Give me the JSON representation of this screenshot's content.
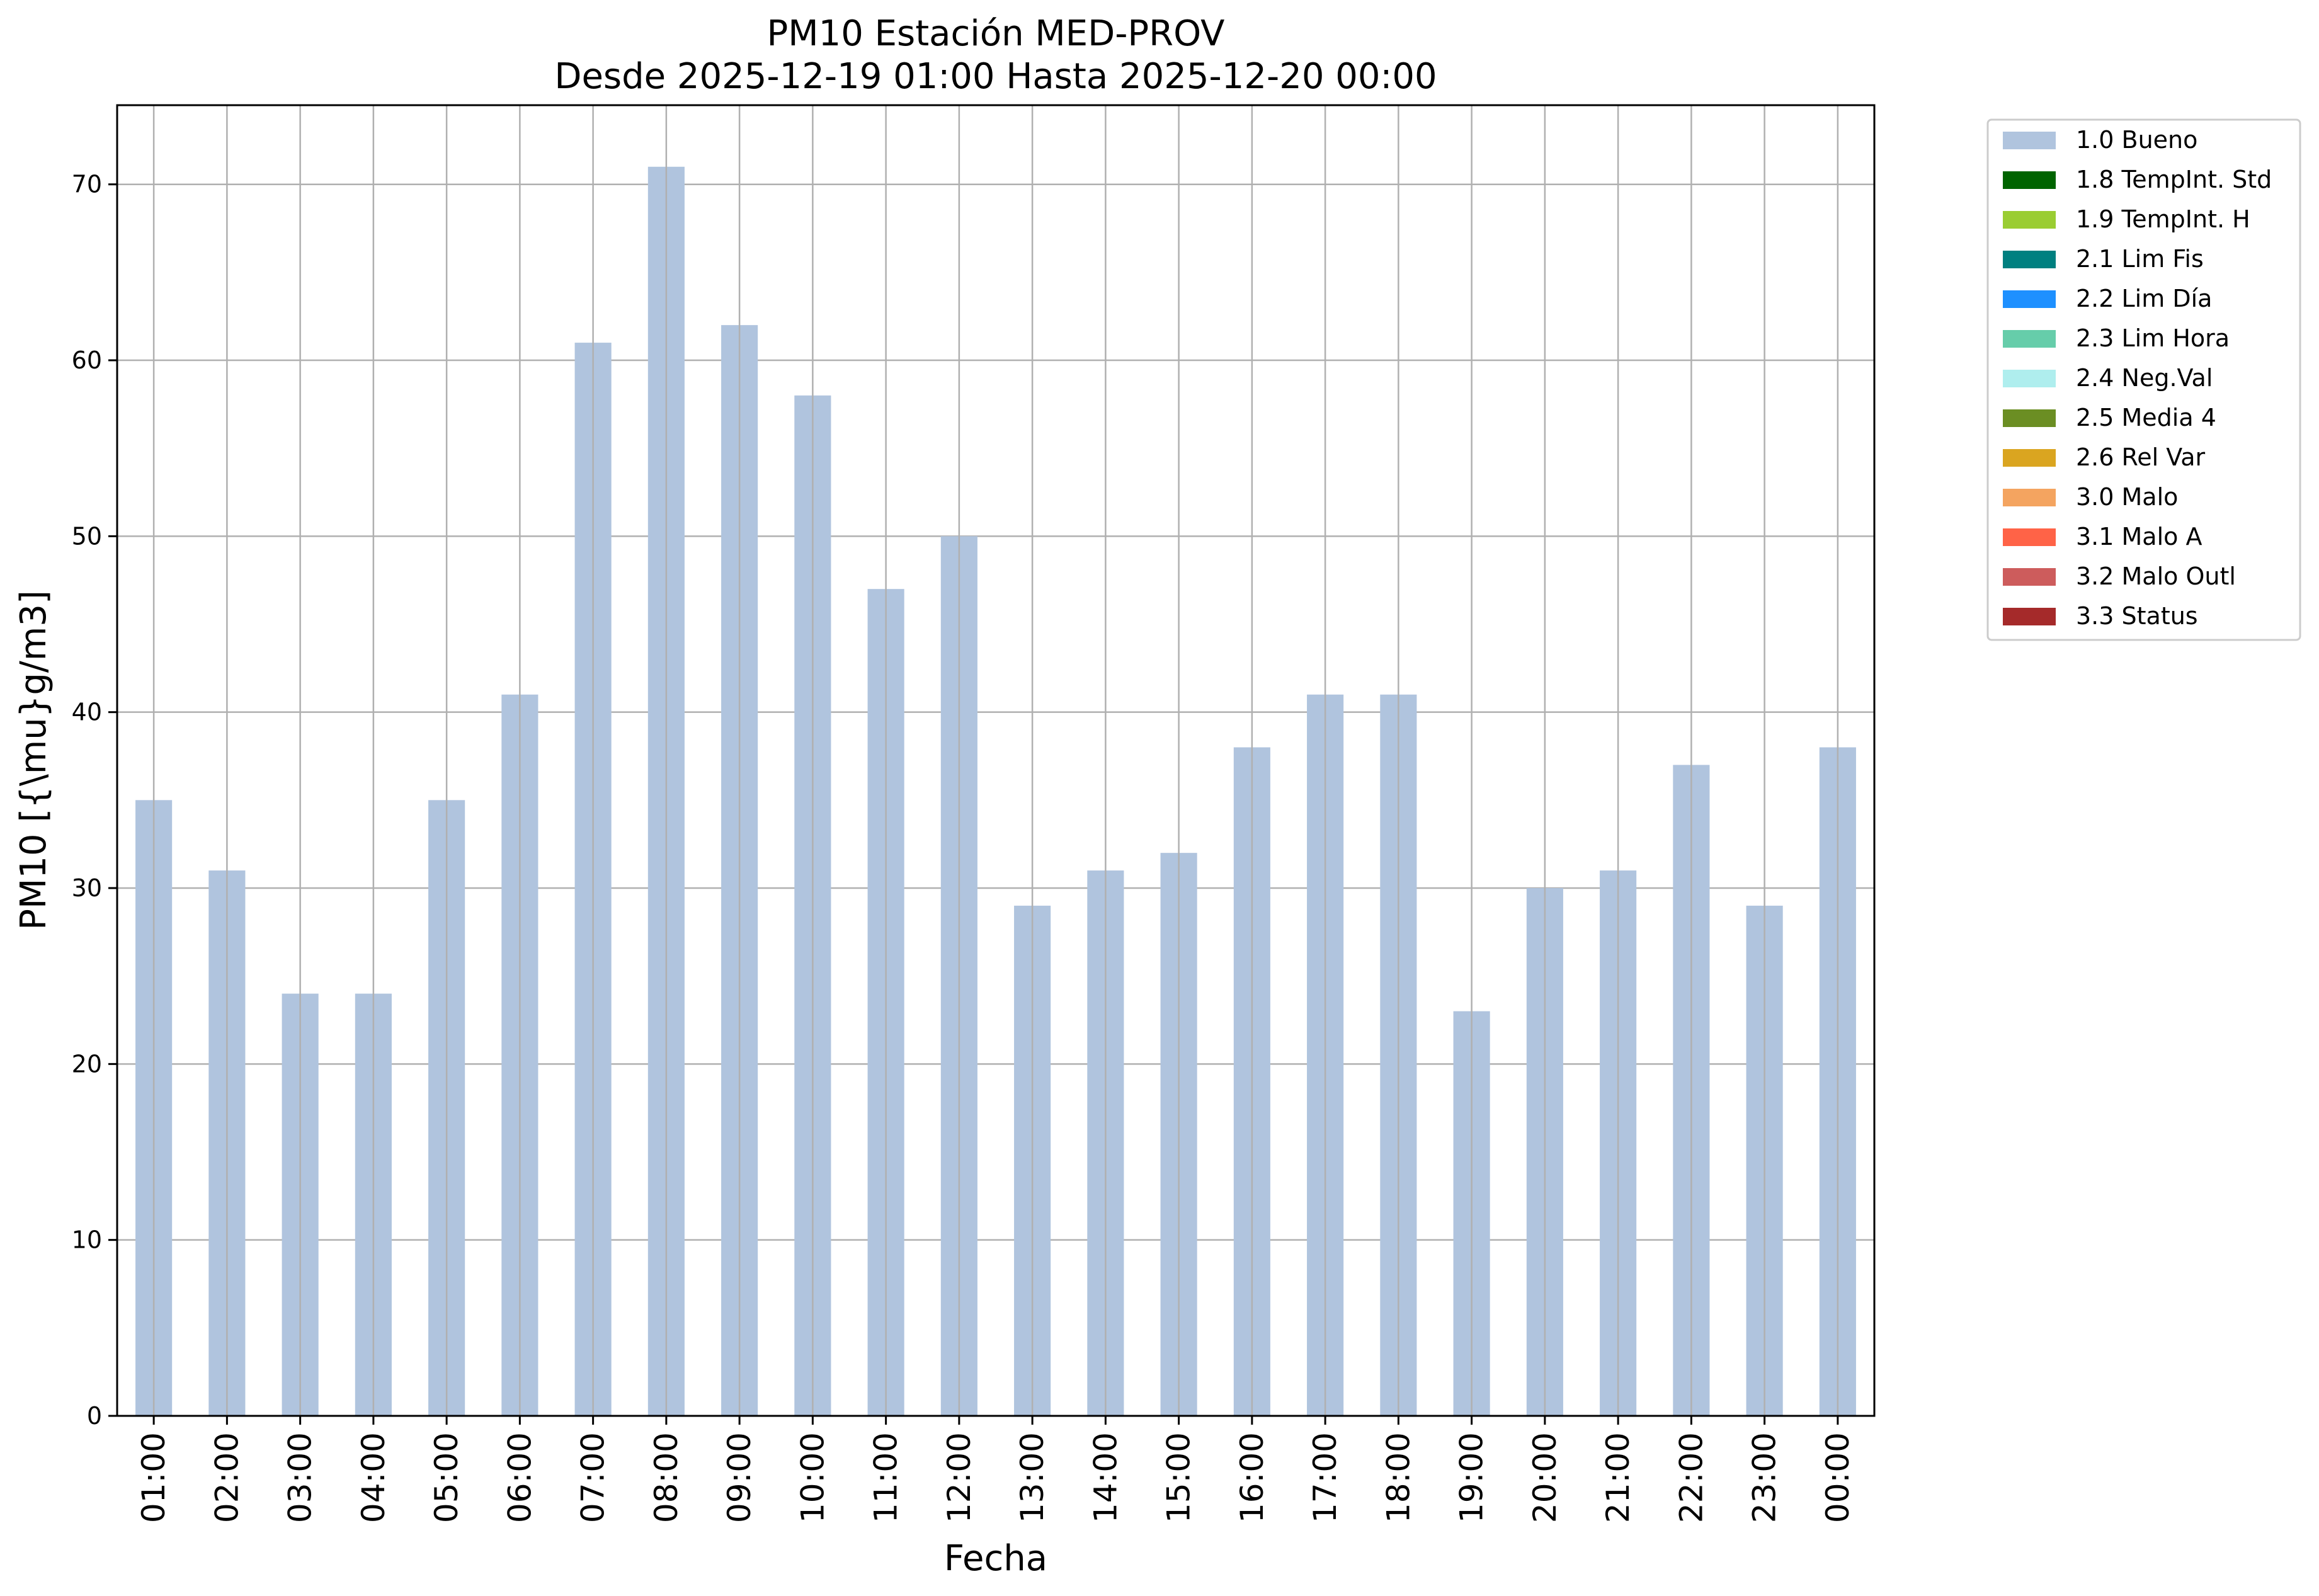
{
  "chart_data": {
    "type": "bar",
    "title": "PM10 Estación MED-PROV",
    "subtitle": "Desde 2025-12-19 01:00 Hasta 2025-12-20 00:00",
    "xlabel": "Fecha",
    "ylabel": "PM10 [{\\mu}g/m3]",
    "ylim": [
      0,
      74.5
    ],
    "yticks": [
      0,
      10,
      20,
      30,
      40,
      50,
      60,
      70
    ],
    "grid": true,
    "legend_position": "outside-right-top",
    "categories": [
      "01:00",
      "02:00",
      "03:00",
      "04:00",
      "05:00",
      "06:00",
      "07:00",
      "08:00",
      "09:00",
      "10:00",
      "11:00",
      "12:00",
      "13:00",
      "14:00",
      "15:00",
      "16:00",
      "17:00",
      "18:00",
      "19:00",
      "20:00",
      "21:00",
      "22:00",
      "23:00",
      "00:00"
    ],
    "series": [
      {
        "name": "1.0 Bueno",
        "color": "#b0c4de",
        "values": [
          35,
          31,
          24,
          24,
          35,
          41,
          61,
          71,
          62,
          58,
          47,
          50,
          29,
          31,
          32,
          38,
          41,
          41,
          23,
          30,
          31,
          37,
          29,
          38
        ]
      }
    ],
    "legend": [
      {
        "label": "1.0 Bueno",
        "color": "#b0c4de"
      },
      {
        "label": "1.8 TempInt. Std",
        "color": "#006400"
      },
      {
        "label": "1.9 TempInt. H",
        "color": "#9acd32"
      },
      {
        "label": "2.1 Lim Fis",
        "color": "#008080"
      },
      {
        "label": "2.2 Lim Día",
        "color": "#1e90ff"
      },
      {
        "label": "2.3 Lim Hora",
        "color": "#66cdaa"
      },
      {
        "label": "2.4 Neg.Val",
        "color": "#afeeee"
      },
      {
        "label": "2.5 Media 4",
        "color": "#6b8e23"
      },
      {
        "label": "2.6 Rel Var",
        "color": "#daa520"
      },
      {
        "label": "3.0 Malo",
        "color": "#f4a460"
      },
      {
        "label": "3.1 Malo A",
        "color": "#ff6347"
      },
      {
        "label": "3.2 Malo Outl",
        "color": "#cd5c5c"
      },
      {
        "label": "3.3 Status",
        "color": "#a52a2a"
      }
    ]
  }
}
